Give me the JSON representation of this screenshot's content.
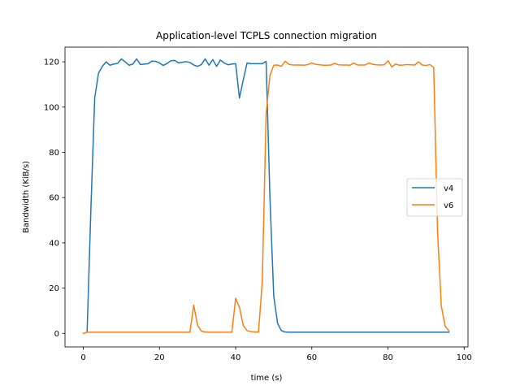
{
  "chart_data": {
    "type": "line",
    "title": "Application-level TCPLS connection migration",
    "xlabel": "time (s)",
    "ylabel": "Bandwidth (KiB/s)",
    "xlim": [
      -4.8,
      101
    ],
    "ylim": [
      -6,
      126.5
    ],
    "xticks": [
      0,
      20,
      40,
      60,
      80,
      100
    ],
    "yticks": [
      0,
      20,
      40,
      60,
      80,
      100,
      120
    ],
    "grid": false,
    "legend_position": "center-right",
    "series": [
      {
        "name": "v4",
        "color": "#1f77b4",
        "x": [
          1,
          2,
          3,
          4,
          5,
          6,
          7,
          8,
          9,
          10,
          11,
          12,
          13,
          14,
          15,
          16,
          17,
          18,
          19,
          20,
          21,
          22,
          23,
          24,
          25,
          26,
          27,
          28,
          29,
          30,
          31,
          32,
          33,
          34,
          35,
          36,
          37,
          38,
          39,
          40,
          41,
          42,
          43,
          44,
          45,
          46,
          47,
          48,
          49,
          50,
          51,
          52,
          53,
          54,
          55,
          56,
          57,
          58,
          59,
          60,
          61,
          62,
          63,
          64,
          65,
          66,
          67,
          68,
          69,
          70,
          71,
          72,
          73,
          74,
          75,
          76,
          77,
          78,
          79,
          80,
          81,
          82,
          83,
          84,
          85,
          86,
          87,
          88,
          89,
          90,
          91,
          92,
          93,
          94,
          95,
          96
        ],
        "y": [
          0.5,
          55,
          104,
          115,
          118,
          120,
          118.5,
          119,
          119.3,
          121.3,
          120,
          118.5,
          119,
          121.3,
          118.8,
          119,
          119.2,
          120.3,
          120.2,
          119.5,
          118.4,
          119.3,
          120.5,
          120.6,
          119.5,
          119.8,
          120.1,
          119.7,
          118.6,
          118,
          118.8,
          121.3,
          118.5,
          121,
          118,
          120.8,
          119.5,
          118.7,
          119,
          119.2,
          104,
          112,
          119.5,
          119.2,
          119.2,
          119.2,
          119.2,
          120.2,
          60,
          16.5,
          4.5,
          1.2,
          0.6,
          0.5,
          0.5,
          0.5,
          0.5,
          0.5,
          0.5,
          0.5,
          0.5,
          0.5,
          0.5,
          0.5,
          0.5,
          0.5,
          0.5,
          0.5,
          0.5,
          0.5,
          0.5,
          0.5,
          0.5,
          0.5,
          0.5,
          0.5,
          0.5,
          0.5,
          0.5,
          0.5,
          0.5,
          0.5,
          0.5,
          0.5,
          0.5,
          0.5,
          0.5,
          0.5,
          0.5,
          0.5,
          0.5,
          0.5,
          0.5,
          0.5,
          0.5,
          0.5
        ]
      },
      {
        "name": "v6",
        "color": "#ff7f0e",
        "x": [
          0,
          1,
          2,
          3,
          4,
          5,
          6,
          7,
          8,
          9,
          10,
          11,
          12,
          13,
          14,
          15,
          16,
          17,
          18,
          19,
          20,
          21,
          22,
          23,
          24,
          25,
          26,
          27,
          28,
          29,
          30,
          31,
          32,
          33,
          34,
          35,
          36,
          37,
          38,
          39,
          40,
          41,
          42,
          43,
          44,
          45,
          46,
          47,
          48,
          49,
          50,
          51,
          52,
          53,
          54,
          55,
          56,
          57,
          58,
          59,
          60,
          61,
          62,
          63,
          64,
          65,
          66,
          67,
          68,
          69,
          70,
          71,
          72,
          73,
          74,
          75,
          76,
          77,
          78,
          79,
          80,
          81,
          82,
          83,
          84,
          85,
          86,
          87,
          88,
          89,
          90,
          91,
          92,
          93,
          94,
          95,
          96
        ],
        "y": [
          0,
          0.5,
          0.5,
          0.5,
          0.5,
          0.5,
          0.5,
          0.5,
          0.5,
          0.5,
          0.5,
          0.5,
          0.5,
          0.5,
          0.5,
          0.5,
          0.5,
          0.5,
          0.5,
          0.5,
          0.5,
          0.5,
          0.5,
          0.5,
          0.5,
          0.5,
          0.5,
          0.5,
          0.5,
          12.5,
          3.5,
          1,
          0.6,
          0.5,
          0.5,
          0.5,
          0.5,
          0.5,
          0.5,
          0.5,
          15.5,
          11.5,
          3.5,
          1.2,
          0.8,
          0.6,
          0.6,
          23,
          97,
          114,
          118.5,
          118.6,
          118,
          120.3,
          118.9,
          118.6,
          118.6,
          118.6,
          118.5,
          118.8,
          119.5,
          118.9,
          118.7,
          118.5,
          118.5,
          118.6,
          119.3,
          118.7,
          118.6,
          118.6,
          118.5,
          119.5,
          118.6,
          118.6,
          118.6,
          119.5,
          118.9,
          118.7,
          118.6,
          118.7,
          120.5,
          117.8,
          119,
          118.5,
          118.6,
          118.8,
          118.7,
          118.6,
          120,
          118.6,
          118.4,
          118.8,
          117.5,
          45,
          12,
          3.2,
          1
        ]
      }
    ]
  }
}
